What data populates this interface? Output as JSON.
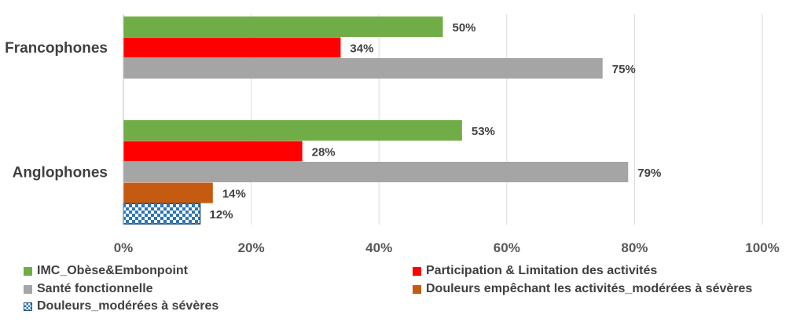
{
  "chart_data": {
    "type": "bar",
    "orientation": "horizontal",
    "categories": [
      "Francophones",
      "Anglophones"
    ],
    "series": [
      {
        "name": "IMC_Obèse&Embonpoint",
        "values": [
          50,
          53
        ],
        "labels": [
          "50%",
          "53%"
        ],
        "color": "#70AD47"
      },
      {
        "name": "Participation & Limitation des activités",
        "values": [
          34,
          28
        ],
        "labels": [
          "34%",
          "28%"
        ],
        "color": "#FF0000"
      },
      {
        "name": "Santé fonctionnelle",
        "values": [
          75,
          79
        ],
        "labels": [
          "75%",
          "79%"
        ],
        "color": "#A5A5A5"
      },
      {
        "name": "Douleurs empêchant les activités_modérées à sévères",
        "values": [
          null,
          14
        ],
        "labels": [
          "",
          "14%"
        ],
        "color": "#C55A11"
      },
      {
        "name": "Douleurs_modérées à sévères",
        "values": [
          null,
          12
        ],
        "labels": [
          "",
          "12%"
        ],
        "color": "#2E75B6",
        "pattern": "checker"
      }
    ],
    "xlim": [
      0,
      100
    ],
    "x_ticks": [
      "0%",
      "20%",
      "40%",
      "60%",
      "80%",
      "100%"
    ],
    "grid": true,
    "legend_position": "bottom",
    "title": "",
    "xlabel": "",
    "ylabel": ""
  }
}
